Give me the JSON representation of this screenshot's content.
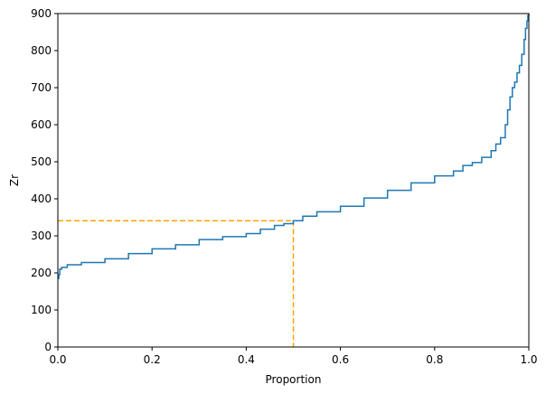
{
  "chart_data": {
    "type": "line",
    "title": "",
    "xlabel": "Proportion",
    "ylabel": "Zr",
    "xlim": [
      0,
      1
    ],
    "ylim": [
      0,
      900
    ],
    "x_ticks": [
      "0.0",
      "0.2",
      "0.4",
      "0.6",
      "0.8",
      "1.0"
    ],
    "y_ticks": [
      "0",
      "100",
      "200",
      "300",
      "400",
      "500",
      "600",
      "700",
      "800",
      "900"
    ],
    "grid": false,
    "legend": "none",
    "series": [
      {
        "color": "#1f77b4",
        "step": true,
        "x": [
          0.0,
          0.002,
          0.004,
          0.008,
          0.02,
          0.05,
          0.1,
          0.15,
          0.2,
          0.25,
          0.3,
          0.35,
          0.4,
          0.43,
          0.46,
          0.48,
          0.5,
          0.52,
          0.55,
          0.6,
          0.65,
          0.7,
          0.75,
          0.8,
          0.84,
          0.86,
          0.88,
          0.9,
          0.92,
          0.93,
          0.94,
          0.95,
          0.955,
          0.96,
          0.965,
          0.97,
          0.975,
          0.98,
          0.985,
          0.99,
          0.993,
          0.996,
          0.998,
          1.0
        ],
        "y": [
          185,
          195,
          210,
          215,
          222,
          228,
          238,
          252,
          265,
          276,
          290,
          298,
          306,
          318,
          328,
          333,
          341,
          353,
          365,
          380,
          402,
          423,
          443,
          462,
          475,
          490,
          498,
          512,
          530,
          548,
          565,
          600,
          640,
          675,
          700,
          715,
          740,
          760,
          790,
          830,
          860,
          880,
          895,
          900
        ]
      }
    ],
    "reference_lines": {
      "color": "#ffa500",
      "x": 0.5,
      "y": 341
    }
  }
}
